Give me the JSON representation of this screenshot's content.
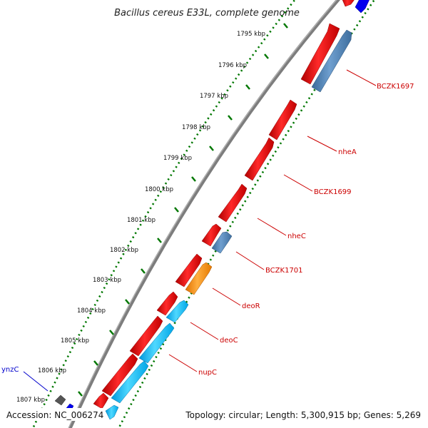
{
  "title": "Bacillus cereus E33L, complete genome",
  "footer": {
    "accession": "Accession: NC_006274",
    "stats": "Topology: circular; Length: 5,300,915 bp; Genes: 5,269"
  },
  "colors": {
    "forward_gene": "#ee0000",
    "reverse_gene_steel": "#4a7fb5",
    "reverse_gene_cyan": "#00bfff",
    "orange_gene": "#ff8c00",
    "blue_gene": "#0000ee",
    "grey_gene": "#555555",
    "backbone": "#808080",
    "tick_track": "#007700",
    "label_red": "#cc0000",
    "label_blue": "#0000cc"
  },
  "ticks": [
    {
      "label": "1795 kbp"
    },
    {
      "label": "1796 kbp"
    },
    {
      "label": "1797 kbp"
    },
    {
      "label": "1798 kbp"
    },
    {
      "label": "1799 kbp"
    },
    {
      "label": "1800 kbp"
    },
    {
      "label": "1801 kbp"
    },
    {
      "label": "1802 kbp"
    },
    {
      "label": "1803 kbp"
    },
    {
      "label": "1804 kbp"
    },
    {
      "label": "1805 kbp"
    },
    {
      "label": "1806 kbp"
    },
    {
      "label": "1807 kbp"
    }
  ],
  "gene_labels": [
    {
      "text": "BCZK1697",
      "color": "red"
    },
    {
      "text": "nheA",
      "color": "red"
    },
    {
      "text": "BCZK1699",
      "color": "red"
    },
    {
      "text": "nheC",
      "color": "red"
    },
    {
      "text": "BCZK1701",
      "color": "red"
    },
    {
      "text": "deoR",
      "color": "red"
    },
    {
      "text": "deoC",
      "color": "red"
    },
    {
      "text": "nupC",
      "color": "red"
    },
    {
      "text": "ynzC",
      "color": "blue"
    }
  ]
}
